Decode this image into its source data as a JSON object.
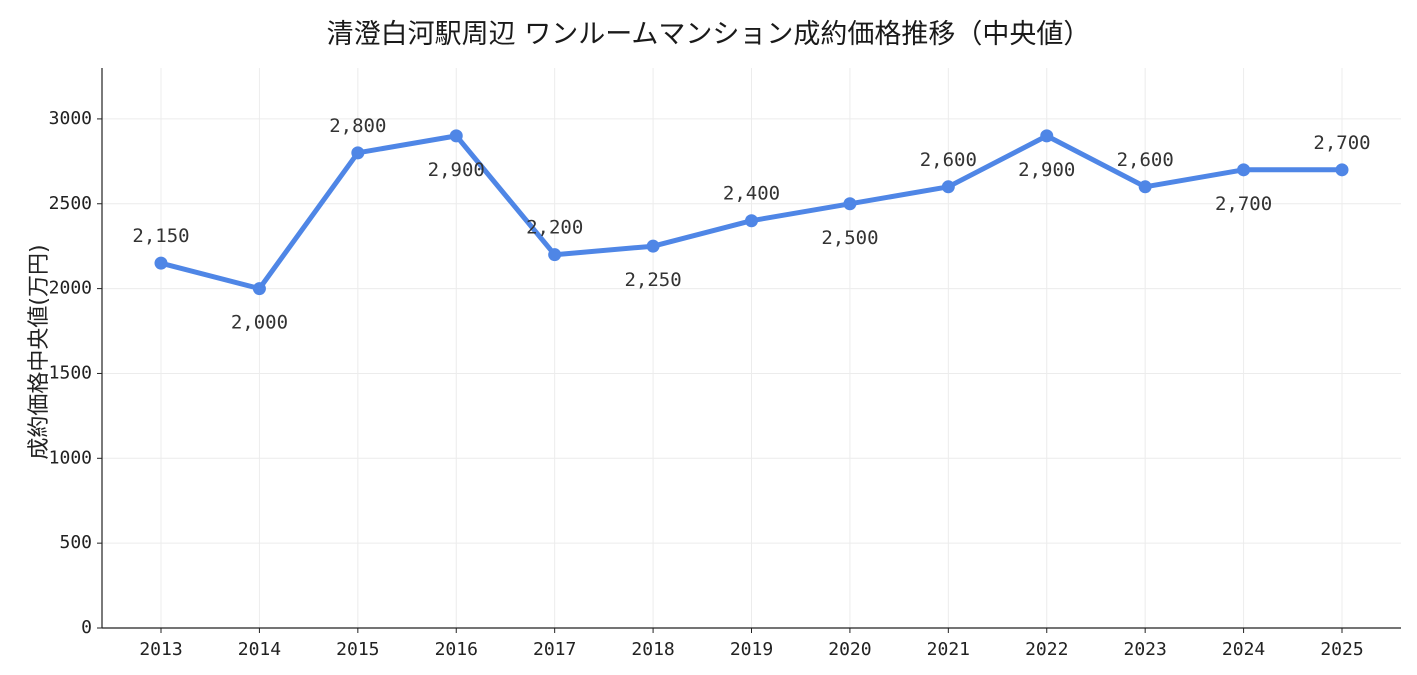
{
  "chart_data": {
    "type": "line",
    "title": "清澄白河駅周辺 ワンルームマンション成約価格推移（中央値）",
    "xlabel": "",
    "ylabel": "成約価格中央値(万円)",
    "categories": [
      "2013",
      "2014",
      "2015",
      "2016",
      "2017",
      "2018",
      "2019",
      "2020",
      "2021",
      "2022",
      "2023",
      "2024",
      "2025"
    ],
    "series": [
      {
        "values": [
          2150,
          2000,
          2800,
          2900,
          2200,
          2250,
          2400,
          2500,
          2600,
          2900,
          2600,
          2700,
          2700
        ],
        "data_labels": [
          "2,150",
          "2,000",
          "2,800",
          "2,900",
          "2,200",
          "2,250",
          "2,400",
          "2,500",
          "2,600",
          "2,900",
          "2,600",
          "2,700",
          "2,700"
        ],
        "color": "#4f86e6"
      }
    ],
    "ylim": [
      0,
      3300
    ],
    "yticks": [
      0,
      500,
      1000,
      1500,
      2000,
      2500,
      3000
    ],
    "grid": true,
    "legend": "none",
    "colors": {
      "line": "#4f86e6",
      "grid": "#ececec",
      "axis": "#222222"
    }
  }
}
